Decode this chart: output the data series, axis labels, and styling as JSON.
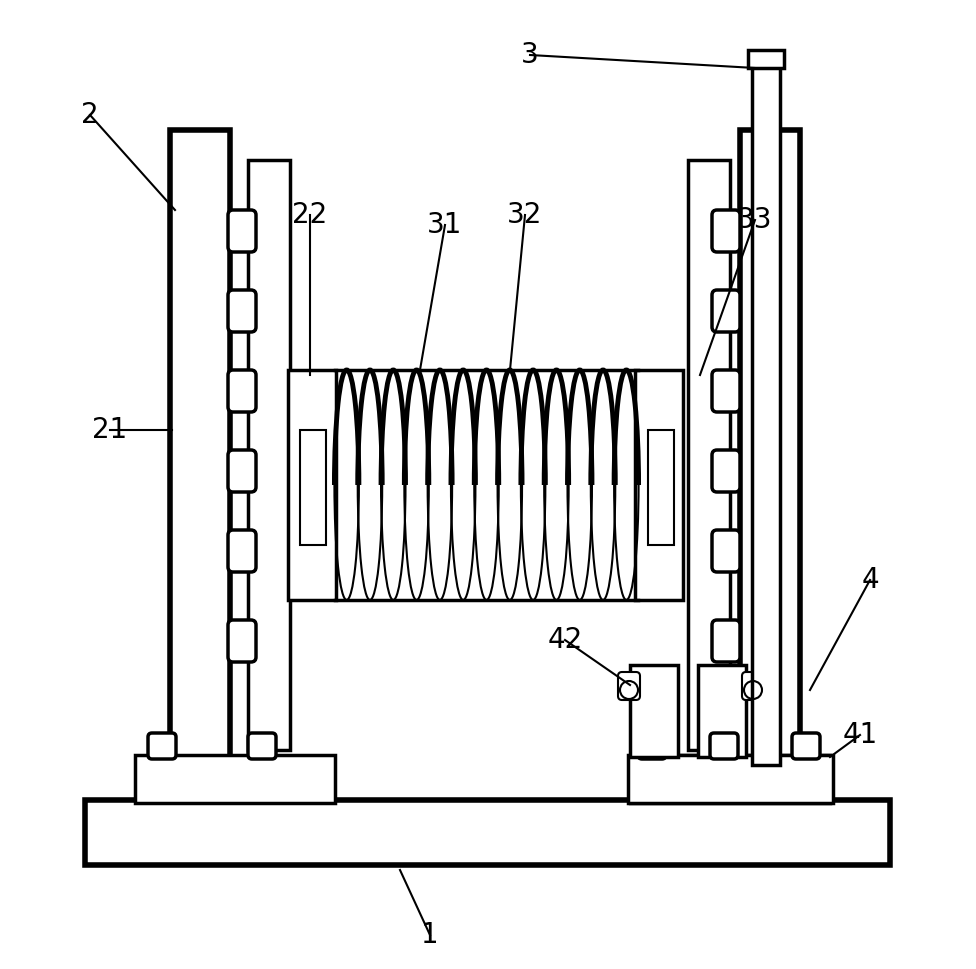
{
  "background_color": "#ffffff",
  "line_color": "#000000",
  "lw_thin": 1.5,
  "lw_med": 2.5,
  "lw_thick": 4.0,
  "label_fontsize": 20,
  "figsize": [
    9.76,
    9.69
  ],
  "dpi": 100
}
